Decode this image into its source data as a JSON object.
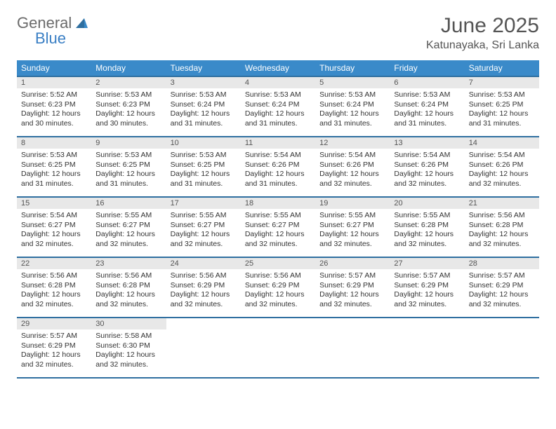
{
  "logo": {
    "part1": "General",
    "part2": "Blue"
  },
  "title": "June 2025",
  "location": "Katunayaka, Sri Lanka",
  "colors": {
    "header_bg": "#3a8ac9",
    "header_text": "#ffffff",
    "border": "#2f6fa0",
    "daynum_bg": "#e8e8e8",
    "text": "#333333",
    "logo_gray": "#6a6a6a",
    "logo_blue": "#3a7fc4"
  },
  "weekdays": [
    "Sunday",
    "Monday",
    "Tuesday",
    "Wednesday",
    "Thursday",
    "Friday",
    "Saturday"
  ],
  "weeks": [
    [
      {
        "n": "1",
        "sr": "5:52 AM",
        "ss": "6:23 PM",
        "dl": "12 hours and 30 minutes."
      },
      {
        "n": "2",
        "sr": "5:53 AM",
        "ss": "6:23 PM",
        "dl": "12 hours and 30 minutes."
      },
      {
        "n": "3",
        "sr": "5:53 AM",
        "ss": "6:24 PM",
        "dl": "12 hours and 31 minutes."
      },
      {
        "n": "4",
        "sr": "5:53 AM",
        "ss": "6:24 PM",
        "dl": "12 hours and 31 minutes."
      },
      {
        "n": "5",
        "sr": "5:53 AM",
        "ss": "6:24 PM",
        "dl": "12 hours and 31 minutes."
      },
      {
        "n": "6",
        "sr": "5:53 AM",
        "ss": "6:24 PM",
        "dl": "12 hours and 31 minutes."
      },
      {
        "n": "7",
        "sr": "5:53 AM",
        "ss": "6:25 PM",
        "dl": "12 hours and 31 minutes."
      }
    ],
    [
      {
        "n": "8",
        "sr": "5:53 AM",
        "ss": "6:25 PM",
        "dl": "12 hours and 31 minutes."
      },
      {
        "n": "9",
        "sr": "5:53 AM",
        "ss": "6:25 PM",
        "dl": "12 hours and 31 minutes."
      },
      {
        "n": "10",
        "sr": "5:53 AM",
        "ss": "6:25 PM",
        "dl": "12 hours and 31 minutes."
      },
      {
        "n": "11",
        "sr": "5:54 AM",
        "ss": "6:26 PM",
        "dl": "12 hours and 31 minutes."
      },
      {
        "n": "12",
        "sr": "5:54 AM",
        "ss": "6:26 PM",
        "dl": "12 hours and 32 minutes."
      },
      {
        "n": "13",
        "sr": "5:54 AM",
        "ss": "6:26 PM",
        "dl": "12 hours and 32 minutes."
      },
      {
        "n": "14",
        "sr": "5:54 AM",
        "ss": "6:26 PM",
        "dl": "12 hours and 32 minutes."
      }
    ],
    [
      {
        "n": "15",
        "sr": "5:54 AM",
        "ss": "6:27 PM",
        "dl": "12 hours and 32 minutes."
      },
      {
        "n": "16",
        "sr": "5:55 AM",
        "ss": "6:27 PM",
        "dl": "12 hours and 32 minutes."
      },
      {
        "n": "17",
        "sr": "5:55 AM",
        "ss": "6:27 PM",
        "dl": "12 hours and 32 minutes."
      },
      {
        "n": "18",
        "sr": "5:55 AM",
        "ss": "6:27 PM",
        "dl": "12 hours and 32 minutes."
      },
      {
        "n": "19",
        "sr": "5:55 AM",
        "ss": "6:27 PM",
        "dl": "12 hours and 32 minutes."
      },
      {
        "n": "20",
        "sr": "5:55 AM",
        "ss": "6:28 PM",
        "dl": "12 hours and 32 minutes."
      },
      {
        "n": "21",
        "sr": "5:56 AM",
        "ss": "6:28 PM",
        "dl": "12 hours and 32 minutes."
      }
    ],
    [
      {
        "n": "22",
        "sr": "5:56 AM",
        "ss": "6:28 PM",
        "dl": "12 hours and 32 minutes."
      },
      {
        "n": "23",
        "sr": "5:56 AM",
        "ss": "6:28 PM",
        "dl": "12 hours and 32 minutes."
      },
      {
        "n": "24",
        "sr": "5:56 AM",
        "ss": "6:29 PM",
        "dl": "12 hours and 32 minutes."
      },
      {
        "n": "25",
        "sr": "5:56 AM",
        "ss": "6:29 PM",
        "dl": "12 hours and 32 minutes."
      },
      {
        "n": "26",
        "sr": "5:57 AM",
        "ss": "6:29 PM",
        "dl": "12 hours and 32 minutes."
      },
      {
        "n": "27",
        "sr": "5:57 AM",
        "ss": "6:29 PM",
        "dl": "12 hours and 32 minutes."
      },
      {
        "n": "28",
        "sr": "5:57 AM",
        "ss": "6:29 PM",
        "dl": "12 hours and 32 minutes."
      }
    ],
    [
      {
        "n": "29",
        "sr": "5:57 AM",
        "ss": "6:29 PM",
        "dl": "12 hours and 32 minutes."
      },
      {
        "n": "30",
        "sr": "5:58 AM",
        "ss": "6:30 PM",
        "dl": "12 hours and 32 minutes."
      },
      null,
      null,
      null,
      null,
      null
    ]
  ],
  "labels": {
    "sunrise": "Sunrise:",
    "sunset": "Sunset:",
    "daylight": "Daylight:"
  }
}
